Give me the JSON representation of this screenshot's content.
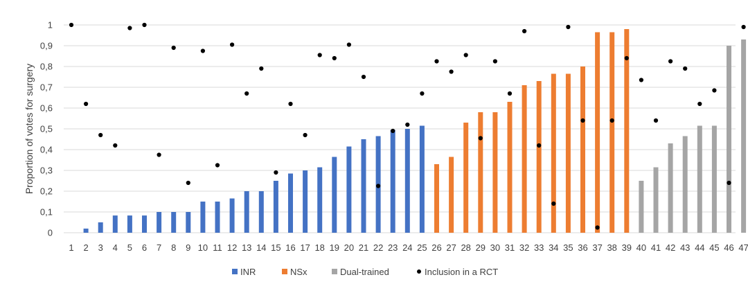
{
  "chart_data": {
    "type": "bar",
    "title": "",
    "xlabel": "",
    "ylabel": "Proportion of votes for surgery",
    "ylim": [
      0,
      1
    ],
    "yticks": [
      "0",
      "0,1",
      "0,2",
      "0,3",
      "0,4",
      "0,5",
      "0,6",
      "0,7",
      "0,8",
      "0,9",
      "1"
    ],
    "grid": true,
    "legend_position": "bottom",
    "categories": [
      "1",
      "2",
      "3",
      "4",
      "5",
      "6",
      "7",
      "8",
      "9",
      "10",
      "11",
      "12",
      "13",
      "14",
      "15",
      "16",
      "17",
      "18",
      "19",
      "20",
      "21",
      "22",
      "23",
      "24",
      "25",
      "26",
      "27",
      "28",
      "29",
      "30",
      "31",
      "32",
      "33",
      "34",
      "35",
      "36",
      "37",
      "38",
      "39",
      "40",
      "41",
      "42",
      "43",
      "44",
      "45",
      "46",
      "47"
    ],
    "bar_series": [
      {
        "name": "INR",
        "color": "#4472c4",
        "start_index": 0,
        "values": [
          0,
          0.02,
          0.05,
          0.083,
          0.083,
          0.083,
          0.1,
          0.1,
          0.1,
          0.15,
          0.15,
          0.165,
          0.2,
          0.2,
          0.25,
          0.285,
          0.3,
          0.315,
          0.365,
          0.415,
          0.45,
          0.465,
          0.495,
          0.5,
          0.515
        ]
      },
      {
        "name": "NSx",
        "color": "#ed7d31",
        "start_index": 25,
        "values": [
          0.33,
          0.365,
          0.53,
          0.58,
          0.58,
          0.63,
          0.71,
          0.73,
          0.765,
          0.765,
          0.8,
          0.965,
          0.965,
          0.98
        ]
      },
      {
        "name": "Dual-trained",
        "color": "#a5a5a5",
        "start_index": 39,
        "values": [
          0.25,
          0.315,
          0.43,
          0.465,
          0.515,
          0.515,
          0.9,
          0.93
        ]
      }
    ],
    "scatter_series": {
      "name": "Inclusion in a RCT",
      "color": "#000000",
      "values": [
        1.0,
        0.62,
        0.47,
        0.42,
        0.985,
        1.0,
        0.375,
        0.89,
        0.24,
        0.875,
        0.325,
        0.905,
        0.67,
        0.79,
        0.29,
        0.62,
        0.47,
        0.855,
        0.84,
        0.905,
        0.75,
        0.225,
        0.49,
        0.52,
        0.67,
        0.825,
        0.775,
        0.855,
        0.455,
        0.825,
        0.67,
        0.97,
        0.42,
        0.14,
        0.99,
        0.54,
        0.025,
        0.54,
        0.84,
        0.735,
        0.54,
        0.825,
        0.79,
        0.62,
        0.685,
        0.24,
        0.99
      ]
    },
    "legend": [
      "INR",
      "NSx",
      "Dual-trained",
      "Inclusion in a RCT"
    ]
  }
}
